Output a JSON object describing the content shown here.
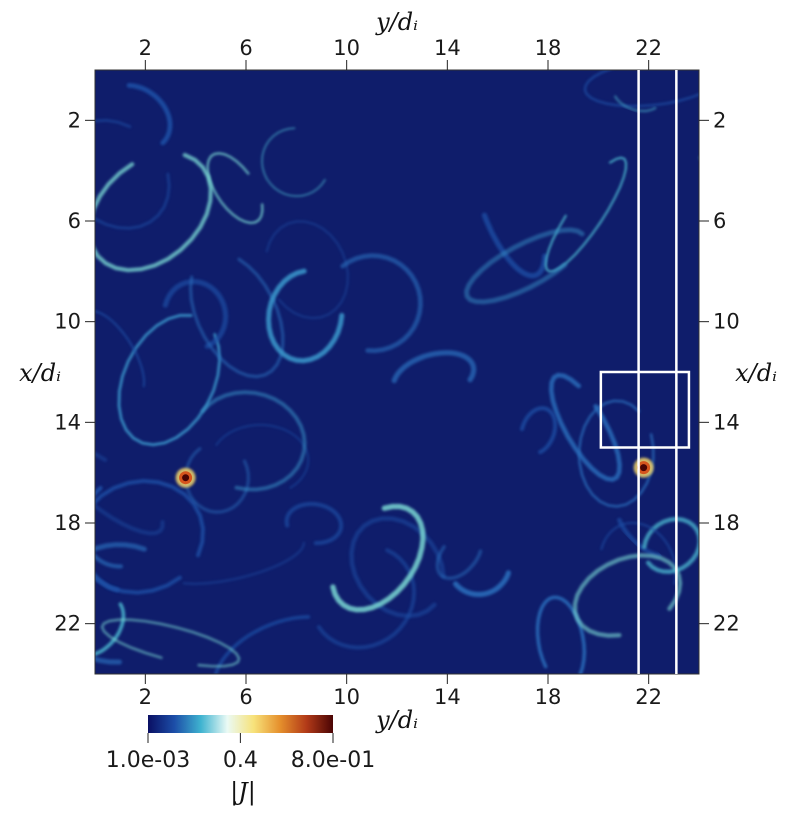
{
  "chart_data": {
    "type": "heatmap",
    "title": "",
    "quantity": "current density magnitude",
    "xlabel": "y/d_i",
    "ylabel": "x/d_i",
    "xlabel_display": "y/dᵢ",
    "ylabel_display": "x/dᵢ",
    "xlim": [
      0,
      24
    ],
    "ylim": [
      0,
      24
    ],
    "y_inverted": true,
    "xticks": [
      2,
      6,
      10,
      14,
      18,
      22
    ],
    "yticks": [
      2,
      6,
      10,
      14,
      18,
      22
    ],
    "grid": false,
    "colorbar": {
      "label": "|J|",
      "label_display": "|J|",
      "min": 0.001,
      "max": 0.8,
      "tick_values": [
        0.001,
        0.4,
        0.8
      ],
      "tick_labels": [
        "1.0e-03",
        "0.4",
        "8.0e-01"
      ],
      "placement": "bottom-left",
      "colors": [
        "#0a0f63",
        "#1c4ea8",
        "#3fb3d0",
        "#eafaf5",
        "#f7e27a",
        "#e58f2c",
        "#b23a18",
        "#4a0404"
      ]
    },
    "background_color": "#0f1d6b",
    "peaks": [
      {
        "y": 3.6,
        "x": 16.2,
        "value": 0.8
      },
      {
        "y": 21.8,
        "x": 15.8,
        "value": 0.78
      }
    ],
    "annotations": [
      {
        "type": "vertical-line",
        "y": 21.6,
        "color": "#ffffff"
      },
      {
        "type": "vertical-line",
        "y": 23.1,
        "color": "#ffffff"
      },
      {
        "type": "rectangle",
        "y_range": [
          20.1,
          23.6
        ],
        "x_range": [
          12.0,
          15.0
        ],
        "color": "#ffffff"
      }
    ]
  }
}
